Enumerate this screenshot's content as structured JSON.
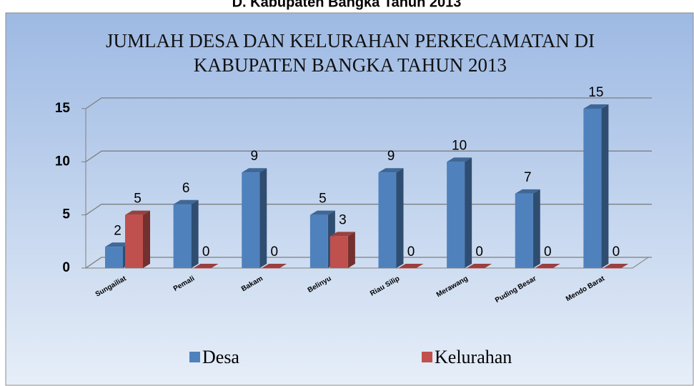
{
  "chart_data": {
    "type": "bar3d",
    "caption": "D. Kabupaten Bangka Tahun 2013",
    "title": "JUMLAH DESA DAN KELURAHAN PERKECAMATAN DI KABUPATEN  BANGKA TAHUN 2013",
    "categories": [
      "Sungailiat",
      "Pemali",
      "Bakam",
      "Belinyu",
      "Riau Silip",
      "Merawang",
      "Puding Besar",
      "Mendo Barat"
    ],
    "series": [
      {
        "name": "Desa",
        "color": "#4f81bd",
        "values": [
          2,
          6,
          9,
          5,
          9,
          10,
          7,
          15
        ]
      },
      {
        "name": "Kelurahan",
        "color": "#c0504d",
        "values": [
          5,
          0,
          0,
          3,
          0,
          0,
          0,
          0
        ]
      }
    ],
    "ylim": [
      0,
      15
    ],
    "yticks": [
      0,
      5,
      10,
      15
    ],
    "grid": true,
    "legend": "bottom"
  }
}
